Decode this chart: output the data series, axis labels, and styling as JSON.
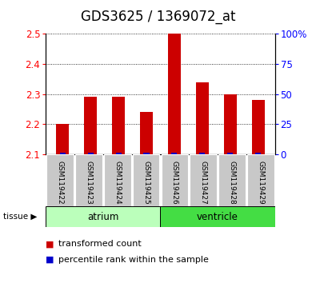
{
  "title": "GDS3625 / 1369072_at",
  "samples": [
    "GSM119422",
    "GSM119423",
    "GSM119424",
    "GSM119425",
    "GSM119426",
    "GSM119427",
    "GSM119428",
    "GSM119429"
  ],
  "red_values": [
    2.2,
    2.29,
    2.29,
    2.24,
    2.5,
    2.34,
    2.3,
    2.28
  ],
  "blue_percentiles": [
    2,
    2,
    2,
    2,
    3,
    2,
    2,
    2
  ],
  "ylim_left": [
    2.1,
    2.5
  ],
  "ylim_right": [
    0,
    100
  ],
  "yticks_left": [
    2.1,
    2.2,
    2.3,
    2.4,
    2.5
  ],
  "yticks_right": [
    0,
    25,
    50,
    75,
    100
  ],
  "ytick_right_labels": [
    "0",
    "25",
    "50",
    "75",
    "100%"
  ],
  "groups": [
    {
      "label": "atrium",
      "start": 0,
      "end": 4,
      "color": "#bbffbb"
    },
    {
      "label": "ventricle",
      "start": 4,
      "end": 8,
      "color": "#44dd44"
    }
  ],
  "tissue_label": "tissue",
  "legend_red": "transformed count",
  "legend_blue": "percentile rank within the sample",
  "bar_width": 0.45,
  "base_value": 2.1,
  "red_color": "#cc0000",
  "blue_color": "#0000cc",
  "bg_sample": "#c8c8c8",
  "title_fontsize": 12,
  "tick_fontsize": 8.5,
  "sample_fontsize": 6.5,
  "legend_fontsize": 8
}
